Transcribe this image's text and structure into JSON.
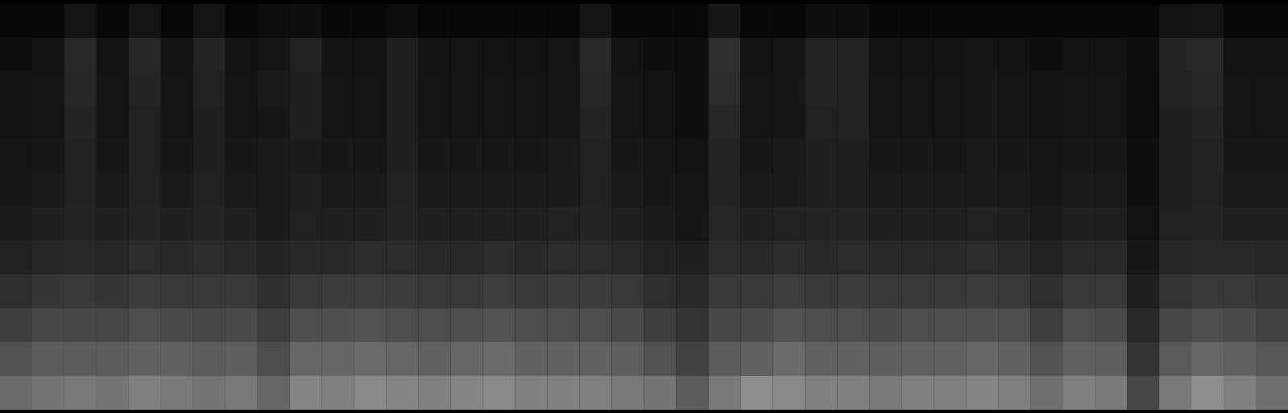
{
  "chart_data": {
    "type": "heatmap",
    "tick_labels": false,
    "color_range": [
      0,
      100
    ],
    "cells": [
      [
        3,
        3,
        8,
        3,
        8,
        3,
        8,
        3,
        5,
        6,
        3,
        3,
        5,
        3,
        3,
        3,
        3,
        3,
        8,
        3,
        3,
        3,
        9,
        3,
        3,
        6,
        6,
        3,
        3,
        3,
        3,
        3,
        3,
        3,
        3,
        3,
        7,
        8,
        3,
        3
      ],
      [
        6,
        7,
        16,
        7,
        15,
        7,
        14,
        7,
        9,
        13,
        7,
        7,
        12,
        7,
        8,
        7,
        7,
        8,
        16,
        7,
        6,
        6,
        18,
        7,
        8,
        14,
        13,
        7,
        7,
        7,
        8,
        7,
        6,
        7,
        7,
        5,
        14,
        16,
        7,
        7
      ],
      [
        7,
        8,
        15,
        8,
        14,
        8,
        13,
        8,
        10,
        12,
        8,
        8,
        12,
        8,
        8,
        8,
        8,
        9,
        15,
        8,
        7,
        6,
        17,
        8,
        9,
        14,
        13,
        8,
        8,
        8,
        9,
        8,
        7,
        8,
        8,
        5,
        13,
        15,
        8,
        8
      ],
      [
        7,
        8,
        14,
        8,
        13,
        8,
        12,
        8,
        9,
        12,
        8,
        8,
        12,
        8,
        8,
        8,
        8,
        9,
        14,
        8,
        7,
        6,
        15,
        8,
        9,
        13,
        13,
        8,
        8,
        8,
        9,
        8,
        7,
        8,
        8,
        5,
        12,
        14,
        8,
        8
      ],
      [
        8,
        9,
        13,
        9,
        13,
        9,
        12,
        9,
        10,
        11,
        9,
        9,
        12,
        9,
        9,
        9,
        9,
        10,
        13,
        9,
        8,
        7,
        14,
        9,
        10,
        12,
        12,
        9,
        9,
        9,
        10,
        9,
        8,
        9,
        9,
        6,
        12,
        13,
        9,
        9
      ],
      [
        9,
        10,
        13,
        10,
        13,
        10,
        13,
        10,
        10,
        12,
        10,
        10,
        13,
        10,
        10,
        10,
        10,
        11,
        13,
        10,
        9,
        8,
        14,
        10,
        11,
        12,
        12,
        10,
        10,
        10,
        11,
        10,
        9,
        10,
        10,
        6,
        12,
        13,
        10,
        10
      ],
      [
        10,
        12,
        14,
        12,
        14,
        12,
        14,
        12,
        11,
        13,
        12,
        12,
        14,
        12,
        12,
        12,
        12,
        13,
        14,
        12,
        10,
        9,
        15,
        12,
        13,
        14,
        14,
        12,
        12,
        12,
        13,
        12,
        10,
        12,
        12,
        7,
        13,
        14,
        12,
        12
      ],
      [
        13,
        15,
        16,
        15,
        17,
        16,
        17,
        16,
        14,
        16,
        16,
        17,
        17,
        16,
        16,
        17,
        16,
        17,
        17,
        16,
        13,
        12,
        17,
        16,
        17,
        16,
        17,
        16,
        16,
        16,
        17,
        16,
        13,
        16,
        16,
        9,
        15,
        16,
        16,
        15
      ],
      [
        18,
        21,
        22,
        21,
        23,
        22,
        22,
        22,
        19,
        22,
        23,
        24,
        23,
        22,
        22,
        24,
        22,
        23,
        23,
        22,
        18,
        16,
        22,
        22,
        24,
        22,
        23,
        22,
        22,
        22,
        23,
        22,
        18,
        22,
        22,
        12,
        20,
        22,
        22,
        20
      ],
      [
        24,
        28,
        28,
        28,
        30,
        29,
        28,
        29,
        24,
        30,
        31,
        32,
        30,
        30,
        31,
        32,
        30,
        30,
        30,
        29,
        24,
        20,
        28,
        29,
        32,
        30,
        30,
        29,
        30,
        30,
        31,
        30,
        24,
        30,
        29,
        16,
        27,
        30,
        29,
        26
      ],
      [
        32,
        36,
        36,
        36,
        38,
        38,
        36,
        37,
        30,
        40,
        40,
        42,
        40,
        38,
        40,
        42,
        38,
        38,
        38,
        37,
        32,
        26,
        36,
        38,
        42,
        38,
        38,
        37,
        38,
        38,
        40,
        38,
        32,
        38,
        37,
        20,
        35,
        40,
        38,
        34
      ],
      [
        42,
        46,
        48,
        46,
        50,
        48,
        46,
        48,
        40,
        52,
        50,
        54,
        52,
        50,
        52,
        54,
        50,
        50,
        50,
        48,
        46,
        36,
        48,
        56,
        54,
        50,
        50,
        48,
        50,
        50,
        52,
        50,
        44,
        50,
        48,
        28,
        48,
        56,
        50,
        44
      ]
    ]
  }
}
